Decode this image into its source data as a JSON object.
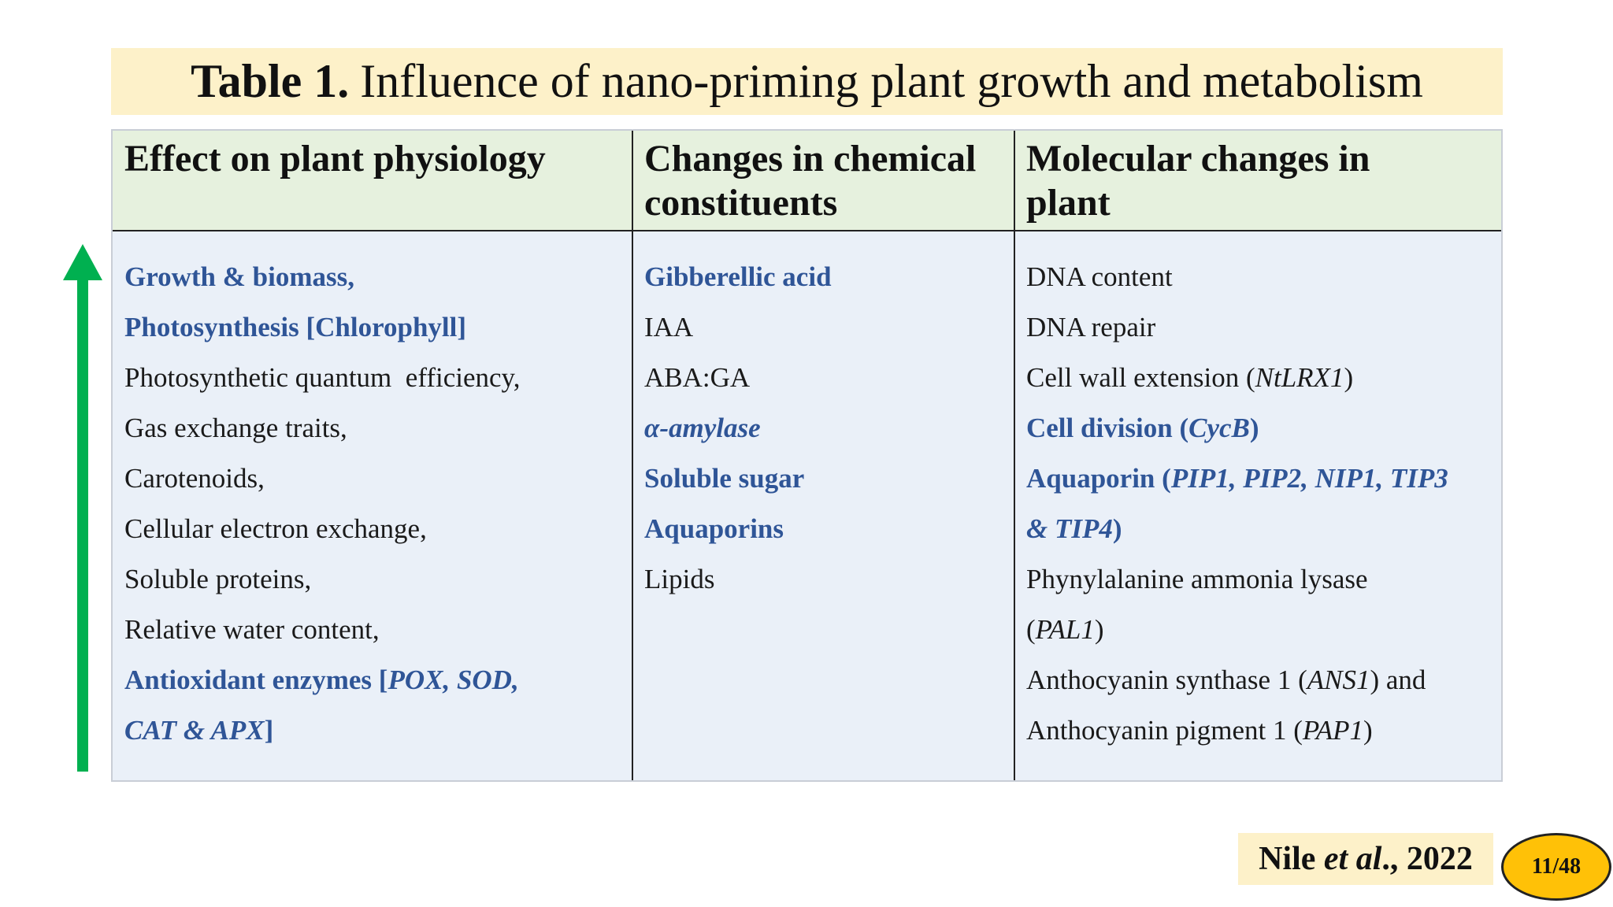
{
  "title": {
    "bold": "Table 1.",
    "text": "Influence of nano-priming plant growth and metabolism"
  },
  "table": {
    "headers": {
      "col1": "Effect on plant physiology",
      "col2_line1": "Changes in chemical",
      "col2_line2": "constituents",
      "col3_line1": "Molecular changes in",
      "col3_line2": "plant"
    },
    "col1": {
      "l1": "Growth & biomass,",
      "l2": "Photosynthesis [Chlorophyll]",
      "l3": "Photosynthetic quantum  efficiency,",
      "l4": "Gas exchange traits,",
      "l5": "Carotenoids,",
      "l6": "Cellular electron exchange,",
      "l7": "Soluble proteins,",
      "l8": "Relative water content,",
      "l9a": "Antioxidant enzymes [",
      "l9b": "POX, SOD,",
      "l10a": "CAT & APX",
      "l10b": "]"
    },
    "col2": {
      "l1": "Gibberellic acid",
      "l2": "IAA",
      "l3": "ABA:GA",
      "l4": "α-amylase",
      "l5": "Soluble sugar",
      "l6": "Aquaporins",
      "l7": "Lipids"
    },
    "col3": {
      "l1": "DNA content",
      "l2": "DNA repair",
      "l3a": "Cell wall extension (",
      "l3b": "NtLRX1",
      "l3c": ")",
      "l4a": "Cell division (",
      "l4b": "CycB",
      "l4c": ")",
      "l5a": "Aquaporin (",
      "l5b": "PIP1, PIP2, NIP1, TIP3",
      "l6a": "& TIP4",
      "l6b": ")",
      "l7": "Phynylalanine ammonia lysase",
      "l8a": "(",
      "l8b": "PAL1",
      "l8c": ")",
      "l9a": "Anthocyanin synthase 1 (",
      "l9b": "ANS1",
      "l9c": ") and",
      "l10a": "Anthocyanin pigment 1 (",
      "l10b": "PAP1",
      "l10c": ")"
    }
  },
  "arrow_icon": "up-arrow-icon",
  "arrow_color": "#00b050",
  "highlight_color": "#2f5597",
  "reference": {
    "author": "Nile ",
    "etal": "et al",
    "year": "., 2022"
  },
  "page_badge": "11/48"
}
